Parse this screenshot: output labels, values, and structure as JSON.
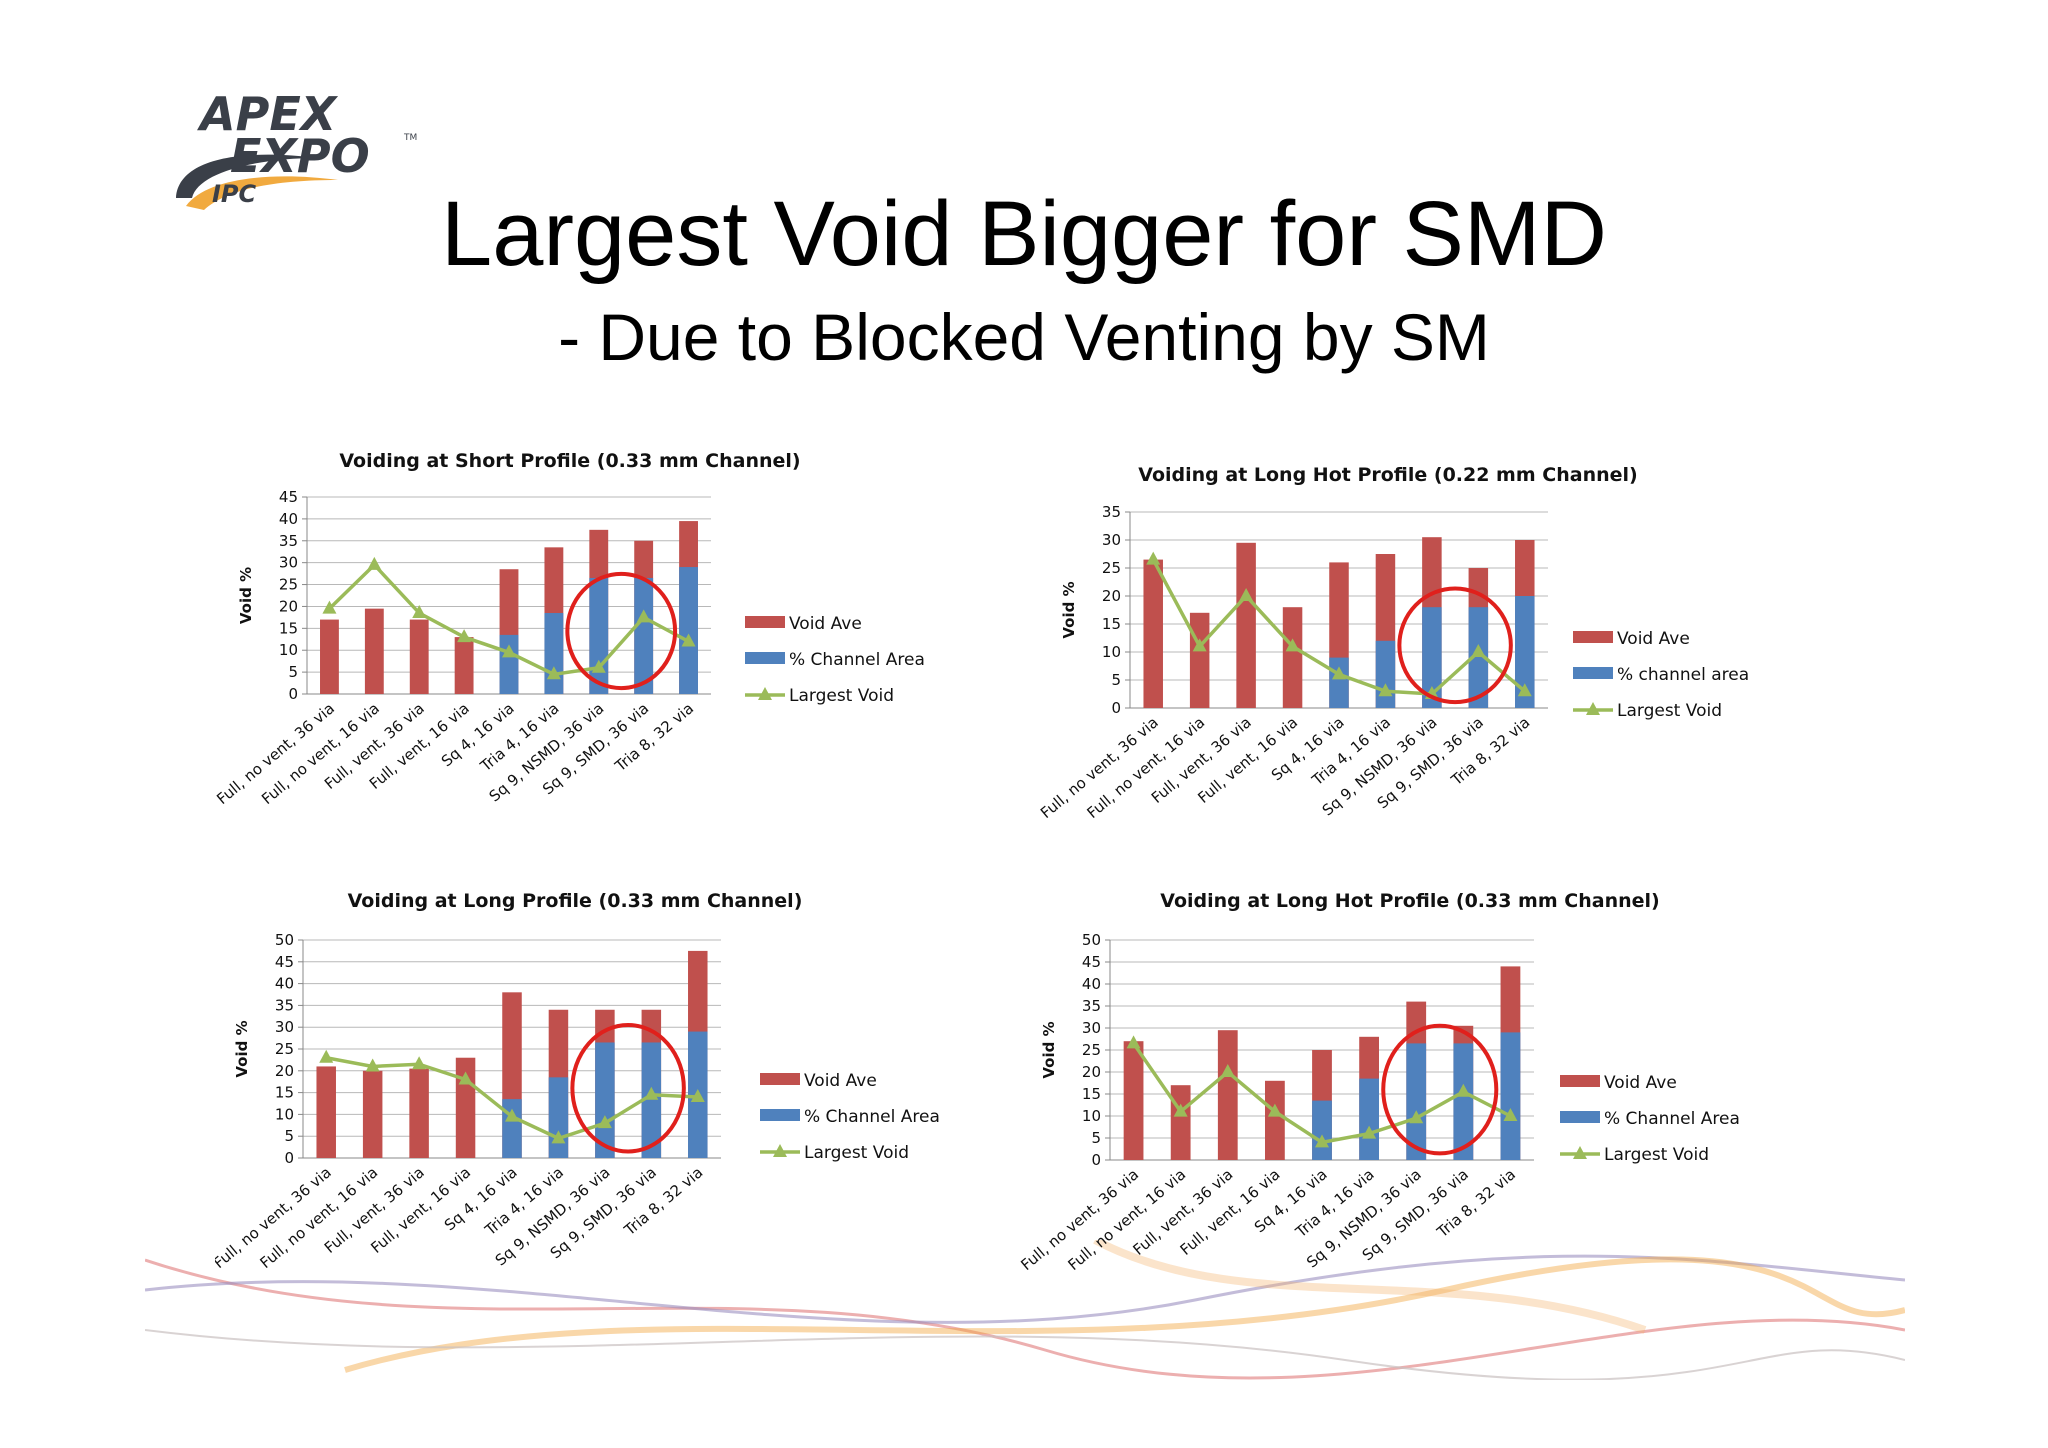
{
  "slide": {
    "title": "Largest Void Bigger for SMD",
    "subtitle": "- Due to Blocked Venting by SM",
    "logo": {
      "line1": "APEX",
      "line2": "EXPO",
      "mark": "IPC",
      "tm": "TM"
    },
    "colors": {
      "void_ave": "#c0504d",
      "channel_area": "#4f81bd",
      "largest_void": "#9bbb59",
      "highlight": "#e0201c"
    }
  },
  "chart_data": [
    {
      "type": "bar",
      "title": "Voiding at Short Profile (0.33 mm Channel)",
      "ylabel": "Void %",
      "ylim": [
        0,
        45
      ],
      "yticks": [
        0,
        5,
        10,
        15,
        20,
        25,
        30,
        35,
        40,
        45
      ],
      "categories": [
        "Full, no vent, 36 via",
        "Full, no vent, 16 via",
        "Full, vent, 36 via",
        "Full, vent, 16 via",
        "Sq 4, 16 via",
        "Tria 4, 16 via",
        "Sq 9, NSMD, 36 via",
        "Sq 9, SMD, 36 via",
        "Tria 8, 32 via"
      ],
      "series": [
        {
          "name": "Void Ave",
          "kind": "total",
          "values": [
            17,
            19.5,
            17,
            13,
            28.5,
            33.5,
            37.5,
            35,
            39.5
          ]
        },
        {
          "name": "% Channel Area",
          "kind": "bar",
          "values": [
            0,
            0,
            0,
            0,
            13.5,
            18.5,
            26.5,
            26.5,
            29
          ]
        },
        {
          "name": "Largest Void",
          "kind": "line",
          "values": [
            19.5,
            29.5,
            18.5,
            13,
            9.5,
            4.5,
            6,
            17.5,
            12
          ]
        }
      ],
      "legend": [
        "Void Ave",
        "% Channel Area",
        "Largest Void"
      ],
      "legend_position": "right",
      "highlight_categories": [
        "Sq 9, NSMD, 36 via",
        "Sq 9, SMD, 36 via"
      ],
      "grid": true
    },
    {
      "type": "bar",
      "title": "Voiding at Long Hot Profile (0.22 mm Channel)",
      "ylabel": "Void %",
      "ylim": [
        0,
        35
      ],
      "yticks": [
        0,
        5,
        10,
        15,
        20,
        25,
        30,
        35
      ],
      "categories": [
        "Full, no vent, 36 via",
        "Full, no vent, 16 via",
        "Full, vent, 36 via",
        "Full, vent, 16 via",
        "Sq 4, 16 via",
        "Tria 4, 16 via",
        "Sq 9, NSMD, 36 via",
        "Sq 9, SMD, 36 via",
        "Tria 8, 32 via"
      ],
      "series": [
        {
          "name": "Void Ave",
          "kind": "total",
          "values": [
            26.5,
            17,
            29.5,
            18,
            26,
            27.5,
            30.5,
            25,
            30
          ]
        },
        {
          "name": "% channel area",
          "kind": "bar",
          "values": [
            0,
            0,
            0,
            0,
            9,
            12,
            18,
            18,
            20
          ]
        },
        {
          "name": "Largest Void",
          "kind": "line",
          "values": [
            26.5,
            11,
            20,
            11,
            6,
            3,
            2.5,
            10,
            3
          ]
        }
      ],
      "legend": [
        "Void Ave",
        "% channel area",
        "Largest Void"
      ],
      "legend_position": "right",
      "highlight_categories": [
        "Sq 9, NSMD, 36 via",
        "Sq 9, SMD, 36 via"
      ],
      "grid": true
    },
    {
      "type": "bar",
      "title": "Voiding at Long Profile (0.33 mm Channel)",
      "ylabel": "Void %",
      "ylim": [
        0,
        50
      ],
      "yticks": [
        0,
        5,
        10,
        15,
        20,
        25,
        30,
        35,
        40,
        45,
        50
      ],
      "categories": [
        "Full, no vent, 36 via",
        "Full, no vent, 16 via",
        "Full, vent, 36 via",
        "Full, vent, 16 via",
        "Sq 4, 16 via",
        "Tria 4, 16 via",
        "Sq 9, NSMD, 36 via",
        "Sq 9, SMD, 36 via",
        "Tria 8, 32 via"
      ],
      "series": [
        {
          "name": "Void Ave",
          "kind": "total",
          "values": [
            21,
            20,
            20.5,
            23,
            38,
            34,
            34,
            34,
            47.5
          ]
        },
        {
          "name": "% Channel Area",
          "kind": "bar",
          "values": [
            0,
            0,
            0,
            0,
            13.5,
            18.5,
            26.5,
            26.5,
            29
          ]
        },
        {
          "name": "Largest Void",
          "kind": "line",
          "values": [
            23,
            21,
            21.5,
            18,
            9.5,
            4.5,
            8,
            14.5,
            14
          ]
        }
      ],
      "legend": [
        "Void Ave",
        "% Channel Area",
        "Largest Void"
      ],
      "legend_position": "right",
      "highlight_categories": [
        "Sq 9, NSMD, 36 via",
        "Sq 9, SMD, 36 via"
      ],
      "grid": true
    },
    {
      "type": "bar",
      "title": "Voiding at Long Hot Profile (0.33 mm Channel)",
      "ylabel": "Void %",
      "ylim": [
        0,
        50
      ],
      "yticks": [
        0,
        5,
        10,
        15,
        20,
        25,
        30,
        35,
        40,
        45,
        50
      ],
      "categories": [
        "Full, no vent, 36 via",
        "Full, no vent, 16 via",
        "Full, vent, 36 via",
        "Full, vent, 16 via",
        "Sq 4, 16 via",
        "Tria 4, 16 via",
        "Sq 9, NSMD, 36 via",
        "Sq 9, SMD, 36 via",
        "Tria 8, 32 via"
      ],
      "series": [
        {
          "name": "Void Ave",
          "kind": "total",
          "values": [
            27,
            17,
            29.5,
            18,
            25,
            28,
            36,
            30.5,
            44
          ]
        },
        {
          "name": "% Channel Area",
          "kind": "bar",
          "values": [
            0,
            0,
            0,
            0,
            13.5,
            18.5,
            26.5,
            26.5,
            29
          ]
        },
        {
          "name": "Largest Void",
          "kind": "line",
          "values": [
            26.5,
            11,
            20,
            11,
            4,
            6,
            9.5,
            15.5,
            10
          ]
        }
      ],
      "legend": [
        "Void Ave",
        "% Channel Area",
        "Largest Void"
      ],
      "legend_position": "right",
      "highlight_categories": [
        "Sq 9, NSMD, 36 via",
        "Sq 9, SMD, 36 via"
      ],
      "grid": true
    }
  ]
}
